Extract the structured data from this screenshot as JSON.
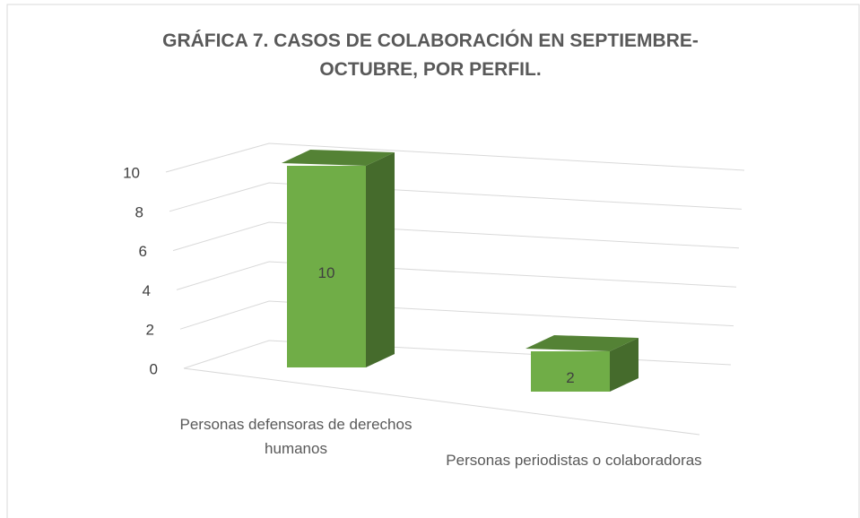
{
  "chart_data": {
    "type": "bar3d",
    "title": "GRÁFICA 7. CASOS DE COLABORACIÓN EN SEPTIEMBRE-OCTUBRE,  POR PERFIL.",
    "categories": [
      "Personas defensoras de derechos humanos",
      "Personas periodistas o colaboradoras"
    ],
    "values": [
      10,
      2
    ],
    "color": "#70ad47",
    "ylim": [
      0,
      10
    ],
    "yticks": [
      0,
      2,
      4,
      6,
      8,
      10
    ],
    "grid": true
  }
}
